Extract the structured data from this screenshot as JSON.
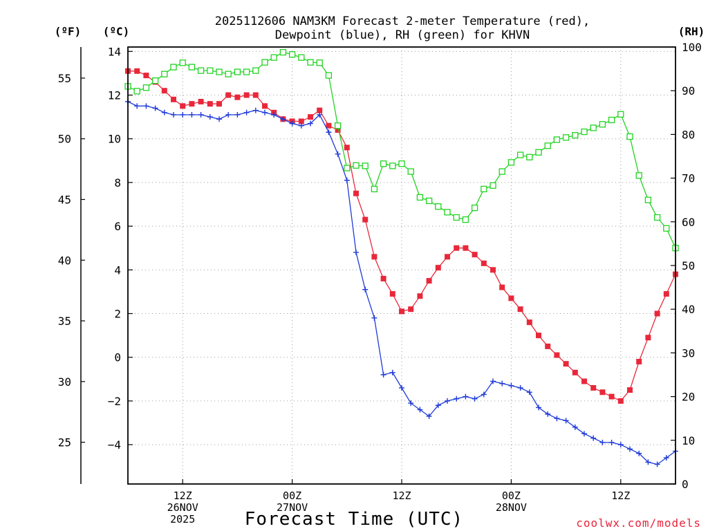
{
  "chart_data": {
    "type": "line",
    "title_line1": "2025112606 NAM3KM Forecast 2-meter Temperature (red),",
    "title_line2": "Dewpoint (blue), RH (green) for KHVN",
    "xlabel": "Forecast Time (UTC)",
    "credit": "coolwx.com/models",
    "units": {
      "fahrenheit": "(ºF)",
      "celsius": "(ºC)",
      "rh": "(RH)"
    },
    "x_range_hours": [
      0,
      60
    ],
    "x_ticks": [
      {
        "hour": 6,
        "lines": [
          "12Z",
          "26NOV",
          "2025"
        ]
      },
      {
        "hour": 18,
        "lines": [
          "00Z",
          "27NOV"
        ]
      },
      {
        "hour": 30,
        "lines": [
          "12Z"
        ]
      },
      {
        "hour": 42,
        "lines": [
          "00Z",
          "28NOV"
        ]
      },
      {
        "hour": 54,
        "lines": [
          "12Z"
        ]
      }
    ],
    "celsius_axis": {
      "range": [
        -5.8,
        14.2
      ],
      "ticks": [
        "14",
        "12",
        "10",
        "8",
        "6",
        "4",
        "2",
        "0",
        "-2",
        "-4"
      ]
    },
    "fahrenheit_axis": {
      "ticks": [
        "55",
        "50",
        "45",
        "40",
        "35",
        "30",
        "25"
      ]
    },
    "rh_axis": {
      "range": [
        0,
        100
      ],
      "ticks": [
        "100",
        "90",
        "80",
        "70",
        "60",
        "50",
        "40",
        "30",
        "20",
        "10",
        "0"
      ]
    },
    "series": [
      {
        "name": "Temperature (C)",
        "color": "#e8283a",
        "marker": "filled-square",
        "axis": "celsius",
        "x": [
          0,
          1,
          2,
          3,
          4,
          5,
          6,
          7,
          8,
          9,
          10,
          11,
          12,
          13,
          14,
          15,
          16,
          17,
          18,
          19,
          20,
          21,
          22,
          23,
          24,
          25,
          26,
          27,
          28,
          29,
          30,
          31,
          32,
          33,
          34,
          35,
          36,
          37,
          38,
          39,
          40,
          41,
          42,
          43,
          44,
          45,
          46,
          47,
          48,
          49,
          50,
          51,
          52,
          53,
          54,
          55,
          56,
          57,
          58,
          59,
          60
        ],
        "values": [
          13.1,
          13.1,
          12.9,
          12.6,
          12.2,
          11.8,
          11.5,
          11.6,
          11.7,
          11.6,
          11.6,
          12.0,
          11.9,
          12.0,
          12.0,
          11.5,
          11.2,
          10.9,
          10.8,
          10.8,
          11.0,
          11.3,
          10.6,
          10.4,
          9.6,
          7.5,
          6.3,
          4.6,
          3.6,
          2.9,
          2.1,
          2.2,
          2.8,
          3.5,
          4.1,
          4.6,
          5.0,
          5.0,
          4.7,
          4.3,
          4.0,
          3.2,
          2.7,
          2.2,
          1.6,
          1.0,
          0.5,
          0.1,
          -0.3,
          -0.7,
          -1.1,
          -1.4,
          -1.6,
          -1.8,
          -2.0,
          -1.5,
          -0.2,
          0.9,
          2.0,
          2.9,
          3.8
        ]
      },
      {
        "name": "Dewpoint (C)",
        "color": "#1e3ad8",
        "marker": "plus",
        "axis": "celsius",
        "x": [
          0,
          1,
          2,
          3,
          4,
          5,
          6,
          7,
          8,
          9,
          10,
          11,
          12,
          13,
          14,
          15,
          16,
          17,
          18,
          19,
          20,
          21,
          22,
          23,
          24,
          25,
          26,
          27,
          28,
          29,
          30,
          31,
          32,
          33,
          34,
          35,
          36,
          37,
          38,
          39,
          40,
          41,
          42,
          43,
          44,
          45,
          46,
          47,
          48,
          49,
          50,
          51,
          52,
          53,
          54,
          55,
          56,
          57,
          58,
          59,
          60
        ],
        "values": [
          11.7,
          11.5,
          11.5,
          11.4,
          11.2,
          11.1,
          11.1,
          11.1,
          11.1,
          11.0,
          10.9,
          11.1,
          11.1,
          11.2,
          11.3,
          11.2,
          11.1,
          10.9,
          10.7,
          10.6,
          10.7,
          11.1,
          10.3,
          9.3,
          8.1,
          4.8,
          3.1,
          1.8,
          -0.8,
          -0.7,
          -1.4,
          -2.1,
          -2.4,
          -2.7,
          -2.2,
          -2.0,
          -1.9,
          -1.8,
          -1.9,
          -1.7,
          -1.1,
          -1.2,
          -1.3,
          -1.4,
          -1.6,
          -2.3,
          -2.6,
          -2.8,
          -2.9,
          -3.2,
          -3.5,
          -3.7,
          -3.9,
          -3.9,
          -4.0,
          -4.2,
          -4.4,
          -4.8,
          -4.9,
          -4.6,
          -4.3
        ]
      },
      {
        "name": "RH (%)",
        "color": "#21d321",
        "marker": "open-square",
        "axis": "rh",
        "x": [
          0,
          1,
          2,
          3,
          4,
          5,
          6,
          7,
          8,
          9,
          10,
          11,
          12,
          13,
          14,
          15,
          16,
          17,
          18,
          19,
          20,
          21,
          22,
          23,
          24,
          25,
          26,
          27,
          28,
          29,
          30,
          31,
          32,
          33,
          34,
          35,
          36,
          37,
          38,
          39,
          40,
          41,
          42,
          43,
          44,
          45,
          46,
          47,
          48,
          49,
          50,
          51,
          52,
          53,
          54,
          55,
          56,
          57,
          58,
          59,
          60
        ],
        "values": [
          91,
          89.9,
          90.7,
          92.3,
          93.8,
          95.4,
          96.4,
          95.4,
          94.6,
          94.6,
          94.3,
          93.8,
          94.3,
          94.3,
          94.6,
          96.5,
          97.6,
          98.8,
          98.3,
          97.6,
          96.5,
          96.4,
          93.5,
          82,
          72.3,
          72.9,
          72.8,
          67.5,
          73.3,
          72.8,
          73.3,
          71.5,
          65.6,
          64.8,
          63.5,
          62.2,
          61,
          60.5,
          63.2,
          67.5,
          68.3,
          71.5,
          73.6,
          75.3,
          74.8,
          75.9,
          77.4,
          78.8,
          79.3,
          79.8,
          80.6,
          81.5,
          82.3,
          83.3,
          84.6,
          79.5,
          70.6,
          65,
          61,
          58.5,
          54
        ]
      }
    ]
  }
}
